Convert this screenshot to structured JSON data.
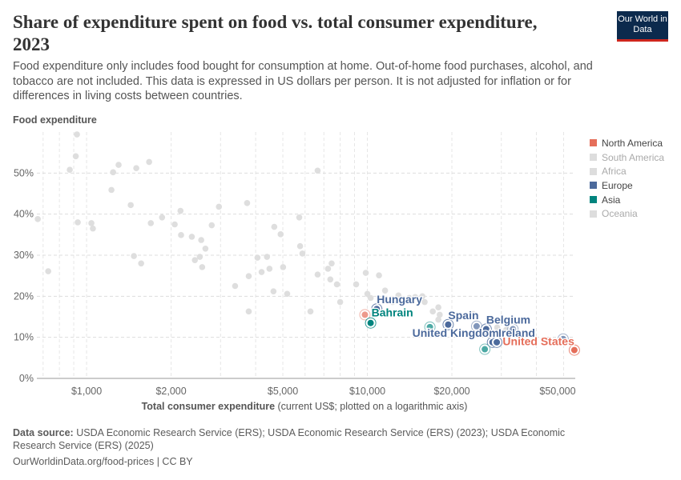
{
  "header": {
    "title": "Share of expenditure spent on food vs. total consumer expenditure, 2023",
    "subtitle": "Food expenditure only includes food bought for consumption at home. Out-of-home food purchases, alcohol, and tobacco are not included. This data is expressed in US dollars per person. It is not adjusted for inflation or for differences in living costs between countries.",
    "logo": "Our World in Data"
  },
  "footer": {
    "source_label": "Data source:",
    "source": " USDA Economic Research Service (ERS); USDA Economic Research Service (ERS) (2023); USDA Economic Research Service (ERS) (2025)",
    "url": "OurWorldinData.org/food-prices | CC BY"
  },
  "chart_data": {
    "type": "scatter",
    "title": "Share of expenditure spent on food vs. total consumer expenditure, 2023",
    "ylabel": "Food expenditure",
    "xlabel_bold": "Total consumer expenditure",
    "xlabel_rest": " (current US$; plotted on a logarithmic axis)",
    "x_scale": "log",
    "xlim": [
      665,
      55000
    ],
    "ylim": [
      0,
      60
    ],
    "grid": true,
    "legend": "right",
    "x_ticks": [
      {
        "v": 1000,
        "label": "$1,000"
      },
      {
        "v": 2000,
        "label": "$2,000"
      },
      {
        "v": 5000,
        "label": "$5,000"
      },
      {
        "v": 10000,
        "label": "$10,000"
      },
      {
        "v": 20000,
        "label": "$20,000"
      },
      {
        "v": 50000,
        "label": "$50,000"
      }
    ],
    "y_ticks": [
      {
        "v": 0,
        "label": "0%"
      },
      {
        "v": 10,
        "label": "10%"
      },
      {
        "v": 20,
        "label": "20%"
      },
      {
        "v": 30,
        "label": "30%"
      },
      {
        "v": 40,
        "label": "40%"
      },
      {
        "v": 50,
        "label": "50%"
      }
    ],
    "legend_items": [
      {
        "name": "North America",
        "color": "#e56e5a",
        "active": true
      },
      {
        "name": "South America",
        "color": "#dddddd",
        "active": false
      },
      {
        "name": "Africa",
        "color": "#dddddd",
        "active": false
      },
      {
        "name": "Europe",
        "color": "#4c6a9c",
        "active": true
      },
      {
        "name": "Asia",
        "color": "#00847e",
        "active": true
      },
      {
        "name": "Oceania",
        "color": "#dddddd",
        "active": false
      }
    ],
    "background_points": [
      [
        670,
        38.8
      ],
      [
        730,
        26.1
      ],
      [
        924,
        59.4
      ],
      [
        915,
        54.1
      ],
      [
        871,
        50.8
      ],
      [
        930,
        38.0
      ],
      [
        1040,
        37.8
      ],
      [
        1053,
        36.5
      ],
      [
        1243,
        50.2
      ],
      [
        1300,
        52.0
      ],
      [
        1226,
        45.9
      ],
      [
        1503,
        51.2
      ],
      [
        1436,
        42.2
      ],
      [
        1670,
        52.7
      ],
      [
        1474,
        29.8
      ],
      [
        1564,
        28.0
      ],
      [
        1693,
        37.8
      ],
      [
        1857,
        39.2
      ],
      [
        2060,
        37.5
      ],
      [
        2160,
        40.8
      ],
      [
        2170,
        34.9
      ],
      [
        2370,
        34.5
      ],
      [
        2430,
        28.8
      ],
      [
        2530,
        29.6
      ],
      [
        2560,
        33.7
      ],
      [
        2580,
        27.1
      ],
      [
        2650,
        31.6
      ],
      [
        2790,
        37.3
      ],
      [
        2960,
        41.8
      ],
      [
        3380,
        22.5
      ],
      [
        3730,
        42.7
      ],
      [
        3780,
        16.3
      ],
      [
        3780,
        24.9
      ],
      [
        4060,
        29.4
      ],
      [
        4200,
        25.9
      ],
      [
        4390,
        29.6
      ],
      [
        4480,
        26.7
      ],
      [
        4660,
        36.9
      ],
      [
        4630,
        21.2
      ],
      [
        4910,
        35.1
      ],
      [
        5010,
        27.1
      ],
      [
        5180,
        20.6
      ],
      [
        5720,
        39.2
      ],
      [
        5760,
        32.2
      ],
      [
        5870,
        30.4
      ],
      [
        6270,
        16.3
      ],
      [
        6650,
        25.3
      ],
      [
        6650,
        50.6
      ],
      [
        7240,
        26.7
      ],
      [
        7460,
        28.0
      ],
      [
        7380,
        24.1
      ],
      [
        7790,
        22.9
      ],
      [
        8000,
        18.6
      ],
      [
        9120,
        22.9
      ],
      [
        9870,
        25.7
      ],
      [
        10000,
        20.6
      ],
      [
        11000,
        25.1
      ],
      [
        11560,
        21.4
      ],
      [
        10270,
        19.6
      ],
      [
        12300,
        18.6
      ],
      [
        12900,
        20.2
      ],
      [
        13600,
        19.2
      ],
      [
        14100,
        19.6
      ],
      [
        14800,
        19.8
      ],
      [
        15700,
        20.0
      ],
      [
        16000,
        18.6
      ],
      [
        17100,
        16.3
      ],
      [
        17900,
        17.3
      ],
      [
        18100,
        15.5
      ],
      [
        17900,
        14.3
      ],
      [
        23800,
        15.7
      ],
      [
        29000,
        12.4
      ],
      [
        31200,
        11.8
      ]
    ],
    "highlighted_points": [
      {
        "label": "",
        "region": "North America",
        "x": 9800,
        "y": 15.5
      },
      {
        "label": "Hungary",
        "region": "Europe",
        "x": 10800,
        "y": 16.9
      },
      {
        "label": "Bahrain",
        "region": "Asia",
        "x": 10270,
        "y": 13.5
      },
      {
        "label": "",
        "region": "Asia",
        "x": 16700,
        "y": 12.5
      },
      {
        "label": "Spain",
        "region": "Europe",
        "x": 19400,
        "y": 13.1
      },
      {
        "label": "",
        "region": "Europe",
        "x": 24500,
        "y": 12.7
      },
      {
        "label": "Belgium",
        "region": "Europe",
        "x": 26500,
        "y": 12.0
      },
      {
        "label": "",
        "region": "Europe",
        "x": 33000,
        "y": 12.0
      },
      {
        "label": "United Kingdom",
        "region": "Europe",
        "x": 27900,
        "y": 8.8
      },
      {
        "label": "Ireland",
        "region": "Europe",
        "x": 28900,
        "y": 8.8
      },
      {
        "label": "",
        "region": "Asia",
        "x": 26200,
        "y": 7.1
      },
      {
        "label": "",
        "region": "Europe",
        "x": 49800,
        "y": 9.6
      },
      {
        "label": "United States",
        "region": "North America",
        "x": 54600,
        "y": 6.9
      }
    ]
  }
}
